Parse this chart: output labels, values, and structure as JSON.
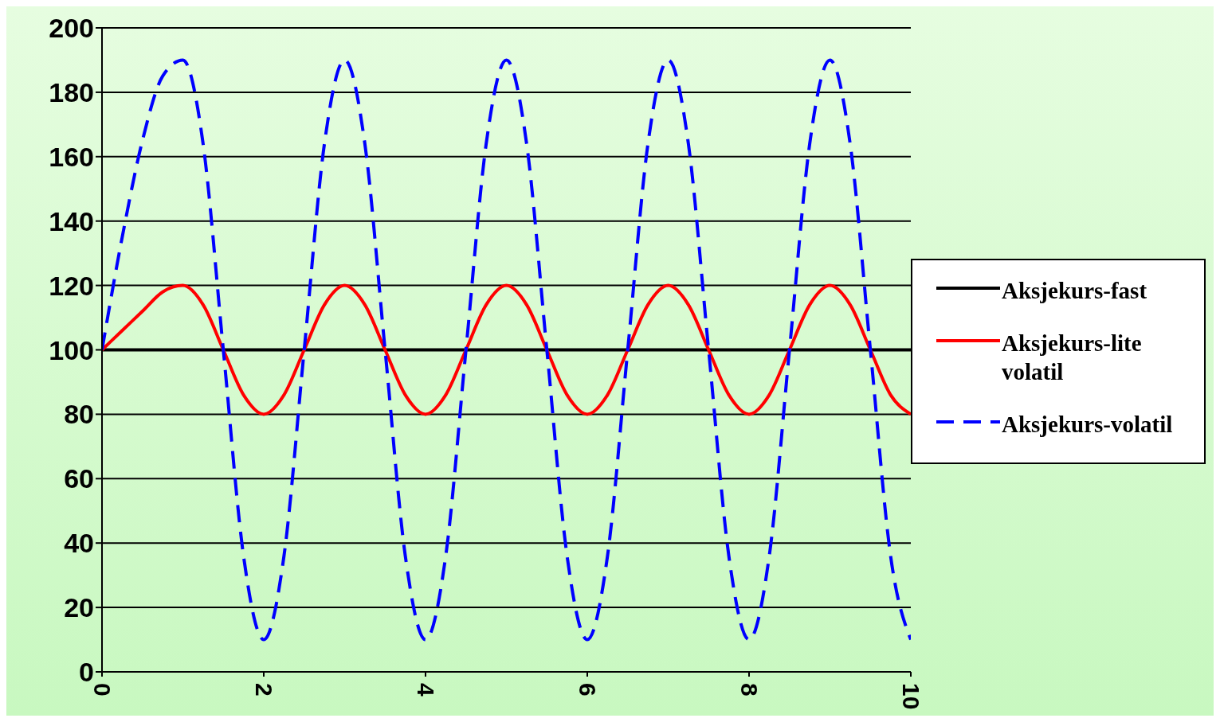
{
  "chart_data": {
    "type": "line",
    "x": [
      0,
      0.25,
      0.5,
      0.75,
      1,
      1.25,
      1.5,
      1.75,
      2,
      2.25,
      2.5,
      2.75,
      3,
      3.25,
      3.5,
      3.75,
      4,
      4.25,
      4.5,
      4.75,
      5,
      5.25,
      5.5,
      5.75,
      6,
      6.25,
      6.5,
      6.75,
      7,
      7.25,
      7.5,
      7.75,
      8,
      8.25,
      8.5,
      8.75,
      9,
      9.25,
      9.5,
      9.75,
      10
    ],
    "series": [
      {
        "name": "Aksjekurs-fast",
        "color": "#000000",
        "line_style": "solid",
        "values": [
          100,
          100,
          100,
          100,
          100,
          100,
          100,
          100,
          100,
          100,
          100,
          100,
          100,
          100,
          100,
          100,
          100,
          100,
          100,
          100,
          100,
          100,
          100,
          100,
          100,
          100,
          100,
          100,
          100,
          100,
          100,
          100,
          100,
          100,
          100,
          100,
          100,
          100,
          100,
          100,
          100
        ]
      },
      {
        "name": "Aksjekurs-lite volatil",
        "color": "#ff0000",
        "line_style": "solid",
        "values": [
          100,
          106,
          112,
          118,
          120,
          114,
          100,
          86,
          80,
          86,
          100,
          114,
          120,
          114,
          100,
          86,
          80,
          86,
          100,
          114,
          120,
          114,
          100,
          86,
          80,
          86,
          100,
          114,
          120,
          114,
          100,
          86,
          80,
          86,
          100,
          114,
          120,
          114,
          100,
          86,
          80
        ]
      },
      {
        "name": "Aksjekurs-volatil",
        "color": "#0000ff",
        "line_style": "dashed",
        "values": [
          100,
          135,
          165,
          185,
          190,
          164,
          100,
          36,
          10,
          36,
          100,
          164,
          190,
          164,
          100,
          36,
          10,
          36,
          100,
          164,
          190,
          164,
          100,
          36,
          10,
          36,
          100,
          164,
          190,
          164,
          100,
          36,
          10,
          36,
          100,
          164,
          190,
          164,
          100,
          36,
          10
        ]
      }
    ],
    "xlim": [
      0,
      10
    ],
    "xticks": [
      0,
      2,
      4,
      6,
      8,
      10
    ],
    "ylim": [
      0,
      200
    ],
    "yticks": [
      0,
      20,
      40,
      60,
      80,
      100,
      120,
      140,
      160,
      180,
      200
    ],
    "grid": "y",
    "legend": "right",
    "marker": "none"
  }
}
